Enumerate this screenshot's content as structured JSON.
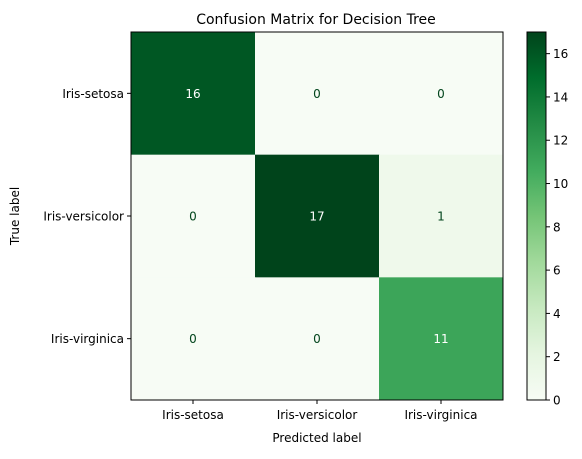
{
  "chart_data": {
    "type": "heatmap",
    "title": "Confusion Matrix for Decision Tree",
    "xlabel": "Predicted label",
    "ylabel": "True label",
    "x_categories": [
      "Iris-setosa",
      "Iris-versicolor",
      "Iris-virginica"
    ],
    "y_categories": [
      "Iris-setosa",
      "Iris-versicolor",
      "Iris-virginica"
    ],
    "matrix": [
      [
        16,
        0,
        0
      ],
      [
        0,
        17,
        1
      ],
      [
        0,
        0,
        11
      ]
    ],
    "colormap": "Greens",
    "colorbar": {
      "min": 0,
      "max": 17,
      "ticks": [
        0,
        2,
        4,
        6,
        8,
        10,
        12,
        14,
        16
      ]
    },
    "text_colors": {
      "light": "#ffffff",
      "dark": "#00441b"
    }
  }
}
